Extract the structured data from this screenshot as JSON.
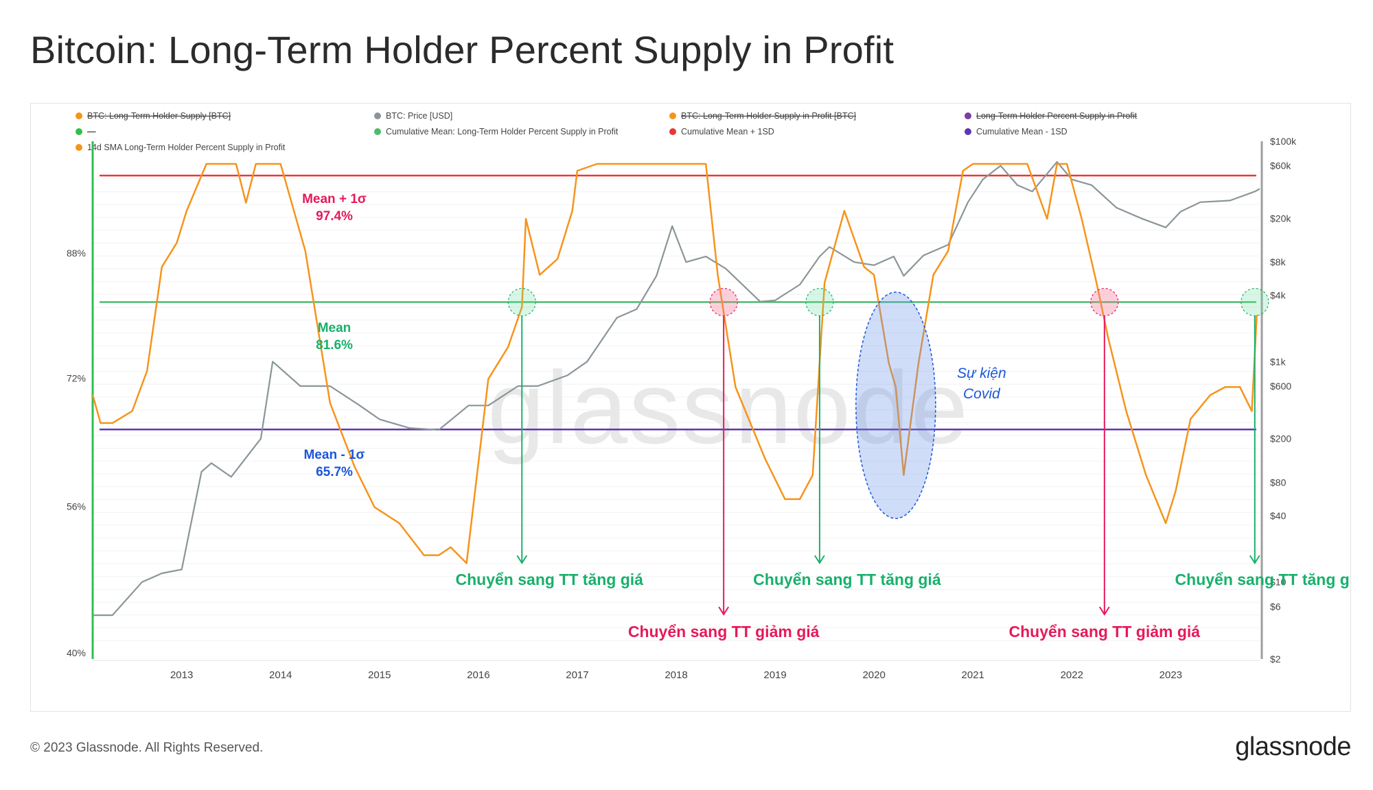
{
  "title": "Bitcoin: Long-Term Holder Percent Supply in Profit",
  "footer": {
    "copyright": "© 2023 Glassnode. All Rights Reserved.",
    "logo": "glassnode"
  },
  "watermark": "glassnode",
  "colors": {
    "lth_profit": "#f7931a",
    "price": "#8a9599",
    "mean": "#4cbb6c",
    "mean_plus": "#e53935",
    "mean_minus": "#5e35b1",
    "annot_bull": "#18b06b",
    "annot_bear": "#e6195a",
    "covid": "#1a56db"
  },
  "legend": [
    {
      "label": "BTC: Long-Term Holder Supply [BTC]",
      "color": "#f7931a",
      "struck": true
    },
    {
      "label": "BTC: Price [USD]",
      "color": "#8a9599",
      "struck": false
    },
    {
      "label": "BTC: Long-Term Holder Supply in Profit [BTC]",
      "color": "#f7931a",
      "struck": true
    },
    {
      "label": "Long-Term Holder Percent Supply in Profit",
      "color": "#7b3fa0",
      "struck": true
    },
    {
      "label": "—",
      "color": "#2fbf4f",
      "struck": true
    },
    {
      "label": "Cumulative Mean: Long-Term Holder Percent Supply in Profit",
      "color": "#4cbb6c",
      "struck": false
    },
    {
      "label": "Cumulative Mean + 1SD",
      "color": "#e53935",
      "struck": false
    },
    {
      "label": "Cumulative Mean - 1SD",
      "color": "#5e35b1",
      "struck": false
    },
    {
      "label": "14d SMA Long-Term Holder Percent Supply in Profit",
      "color": "#f7931a",
      "struck": false
    }
  ],
  "chart_data": {
    "type": "line",
    "x_ticks": [
      "2013",
      "2014",
      "2015",
      "2016",
      "2017",
      "2018",
      "2019",
      "2020",
      "2021",
      "2022",
      "2023"
    ],
    "x_range": [
      2012.1,
      2023.9
    ],
    "y_left": {
      "ticks": [
        "88%",
        "72%",
        "56%",
        "40%"
      ],
      "range_pct": [
        40,
        104
      ]
    },
    "y_right": {
      "ticks": [
        "$100k",
        "$60k",
        "$20k",
        "$8k",
        "$4k",
        "$1k",
        "$600",
        "$200",
        "$80",
        "$40",
        "$10",
        "$6",
        "$2"
      ],
      "tick_values": [
        100000,
        60000,
        20000,
        8000,
        4000,
        1000,
        600,
        200,
        80,
        40,
        10,
        6,
        2
      ],
      "scale": "log"
    },
    "series": [
      {
        "name": "14d SMA Long-Term Holder Percent Supply in Profit",
        "axis": "left",
        "color": "#f7931a",
        "x": [
          2012.1,
          2012.18,
          2012.3,
          2012.5,
          2012.65,
          2012.8,
          2012.95,
          2013.05,
          2013.25,
          2013.55,
          2013.65,
          2013.75,
          2013.85,
          2014.0,
          2014.25,
          2014.5,
          2014.75,
          2014.95,
          2015.2,
          2015.45,
          2015.6,
          2015.72,
          2015.88,
          2016.1,
          2016.3,
          2016.44,
          2016.48,
          2016.62,
          2016.8,
          2016.95,
          2017.0,
          2017.2,
          2017.5,
          2018.0,
          2018.3,
          2018.42,
          2018.6,
          2018.9,
          2019.1,
          2019.25,
          2019.38,
          2019.5,
          2019.7,
          2019.9,
          2020.0,
          2020.15,
          2020.22,
          2020.3,
          2020.45,
          2020.6,
          2020.75,
          2020.9,
          2021.0,
          2021.35,
          2021.45,
          2021.55,
          2021.75,
          2021.85,
          2021.95,
          2022.1,
          2022.25,
          2022.37,
          2022.55,
          2022.75,
          2022.95,
          2023.05,
          2023.2,
          2023.4,
          2023.55,
          2023.7,
          2023.82,
          2023.87
        ],
        "y": [
          70,
          66.5,
          66.5,
          68,
          73,
          86,
          89,
          93,
          100,
          100,
          94,
          100,
          100,
          100,
          88,
          69,
          61,
          56,
          54,
          50,
          50,
          51,
          49,
          72,
          76,
          81,
          92,
          85,
          87,
          93,
          98,
          100,
          100,
          100,
          100,
          85,
          71,
          62,
          57,
          57,
          60,
          84,
          93,
          86,
          85,
          74,
          71,
          60,
          74,
          85,
          88,
          98,
          100,
          100,
          100,
          100,
          92,
          100,
          100,
          92,
          84,
          77,
          68,
          60,
          54,
          58,
          67,
          70,
          71,
          71,
          68,
          80
        ],
        "style_note": "0-100 scale; values >97.4 above Mean+1σ"
      },
      {
        "name": "BTC: Price [USD]",
        "axis": "right",
        "color": "#8a9599",
        "x": [
          2012.1,
          2012.3,
          2012.6,
          2012.8,
          2013.0,
          2013.2,
          2013.3,
          2013.5,
          2013.8,
          2013.92,
          2014.2,
          2014.5,
          2014.8,
          2015.0,
          2015.3,
          2015.6,
          2015.9,
          2016.1,
          2016.4,
          2016.6,
          2016.9,
          2017.1,
          2017.4,
          2017.6,
          2017.8,
          2017.96,
          2018.1,
          2018.3,
          2018.5,
          2018.85,
          2019.0,
          2019.25,
          2019.45,
          2019.55,
          2019.8,
          2020.0,
          2020.2,
          2020.3,
          2020.5,
          2020.75,
          2020.95,
          2021.1,
          2021.28,
          2021.45,
          2021.6,
          2021.85,
          2022.0,
          2022.2,
          2022.45,
          2022.7,
          2022.95,
          2023.1,
          2023.3,
          2023.6,
          2023.85,
          2023.9
        ],
        "y": [
          5,
          5,
          10,
          12,
          13,
          100,
          120,
          90,
          200,
          1000,
          600,
          600,
          400,
          300,
          250,
          240,
          400,
          400,
          600,
          600,
          750,
          1000,
          2500,
          3000,
          6000,
          17000,
          8000,
          9000,
          7000,
          3500,
          3600,
          5000,
          9000,
          11000,
          8000,
          7500,
          9000,
          6000,
          9200,
          11500,
          28000,
          45000,
          60000,
          40000,
          35000,
          65000,
          45000,
          40000,
          25000,
          20000,
          16500,
          23000,
          28000,
          29000,
          35000,
          37000
        ]
      },
      {
        "name": "Cumulative Mean: Long-Term Holder Percent Supply in Profit",
        "axis": "left",
        "color": "#4cbb6c",
        "constant": 81.6
      },
      {
        "name": "Cumulative Mean + 1SD",
        "axis": "left",
        "color": "#e53935",
        "constant": 97.4
      },
      {
        "name": "Cumulative Mean - 1SD",
        "axis": "left",
        "color": "#5e35b1",
        "constant": 65.7
      }
    ],
    "annotations": {
      "levels": [
        {
          "title": "Mean + 1σ",
          "value": "97.4%",
          "kind": "plus"
        },
        {
          "title": "Mean",
          "value": "81.6%",
          "kind": "mean"
        },
        {
          "title": "Mean - 1σ",
          "value": "65.7%",
          "kind": "minus"
        }
      ],
      "signals": [
        {
          "x": 2016.44,
          "text": "Chuyển sang TT tăng giá",
          "kind": "bull"
        },
        {
          "x": 2018.48,
          "text": "Chuyển sang TT giảm giá",
          "kind": "bear"
        },
        {
          "x": 2019.45,
          "text": "Chuyển sang TT tăng giá",
          "kind": "bull"
        },
        {
          "x": 2022.33,
          "text": "Chuyển sang TT giảm giá",
          "kind": "bear"
        },
        {
          "x": 2023.85,
          "text": "Chuyển sang TT tăng giá",
          "kind": "bull"
        }
      ],
      "covid": {
        "x": 2020.22,
        "line1": "Sự kiện",
        "line2": "Covid"
      }
    }
  }
}
